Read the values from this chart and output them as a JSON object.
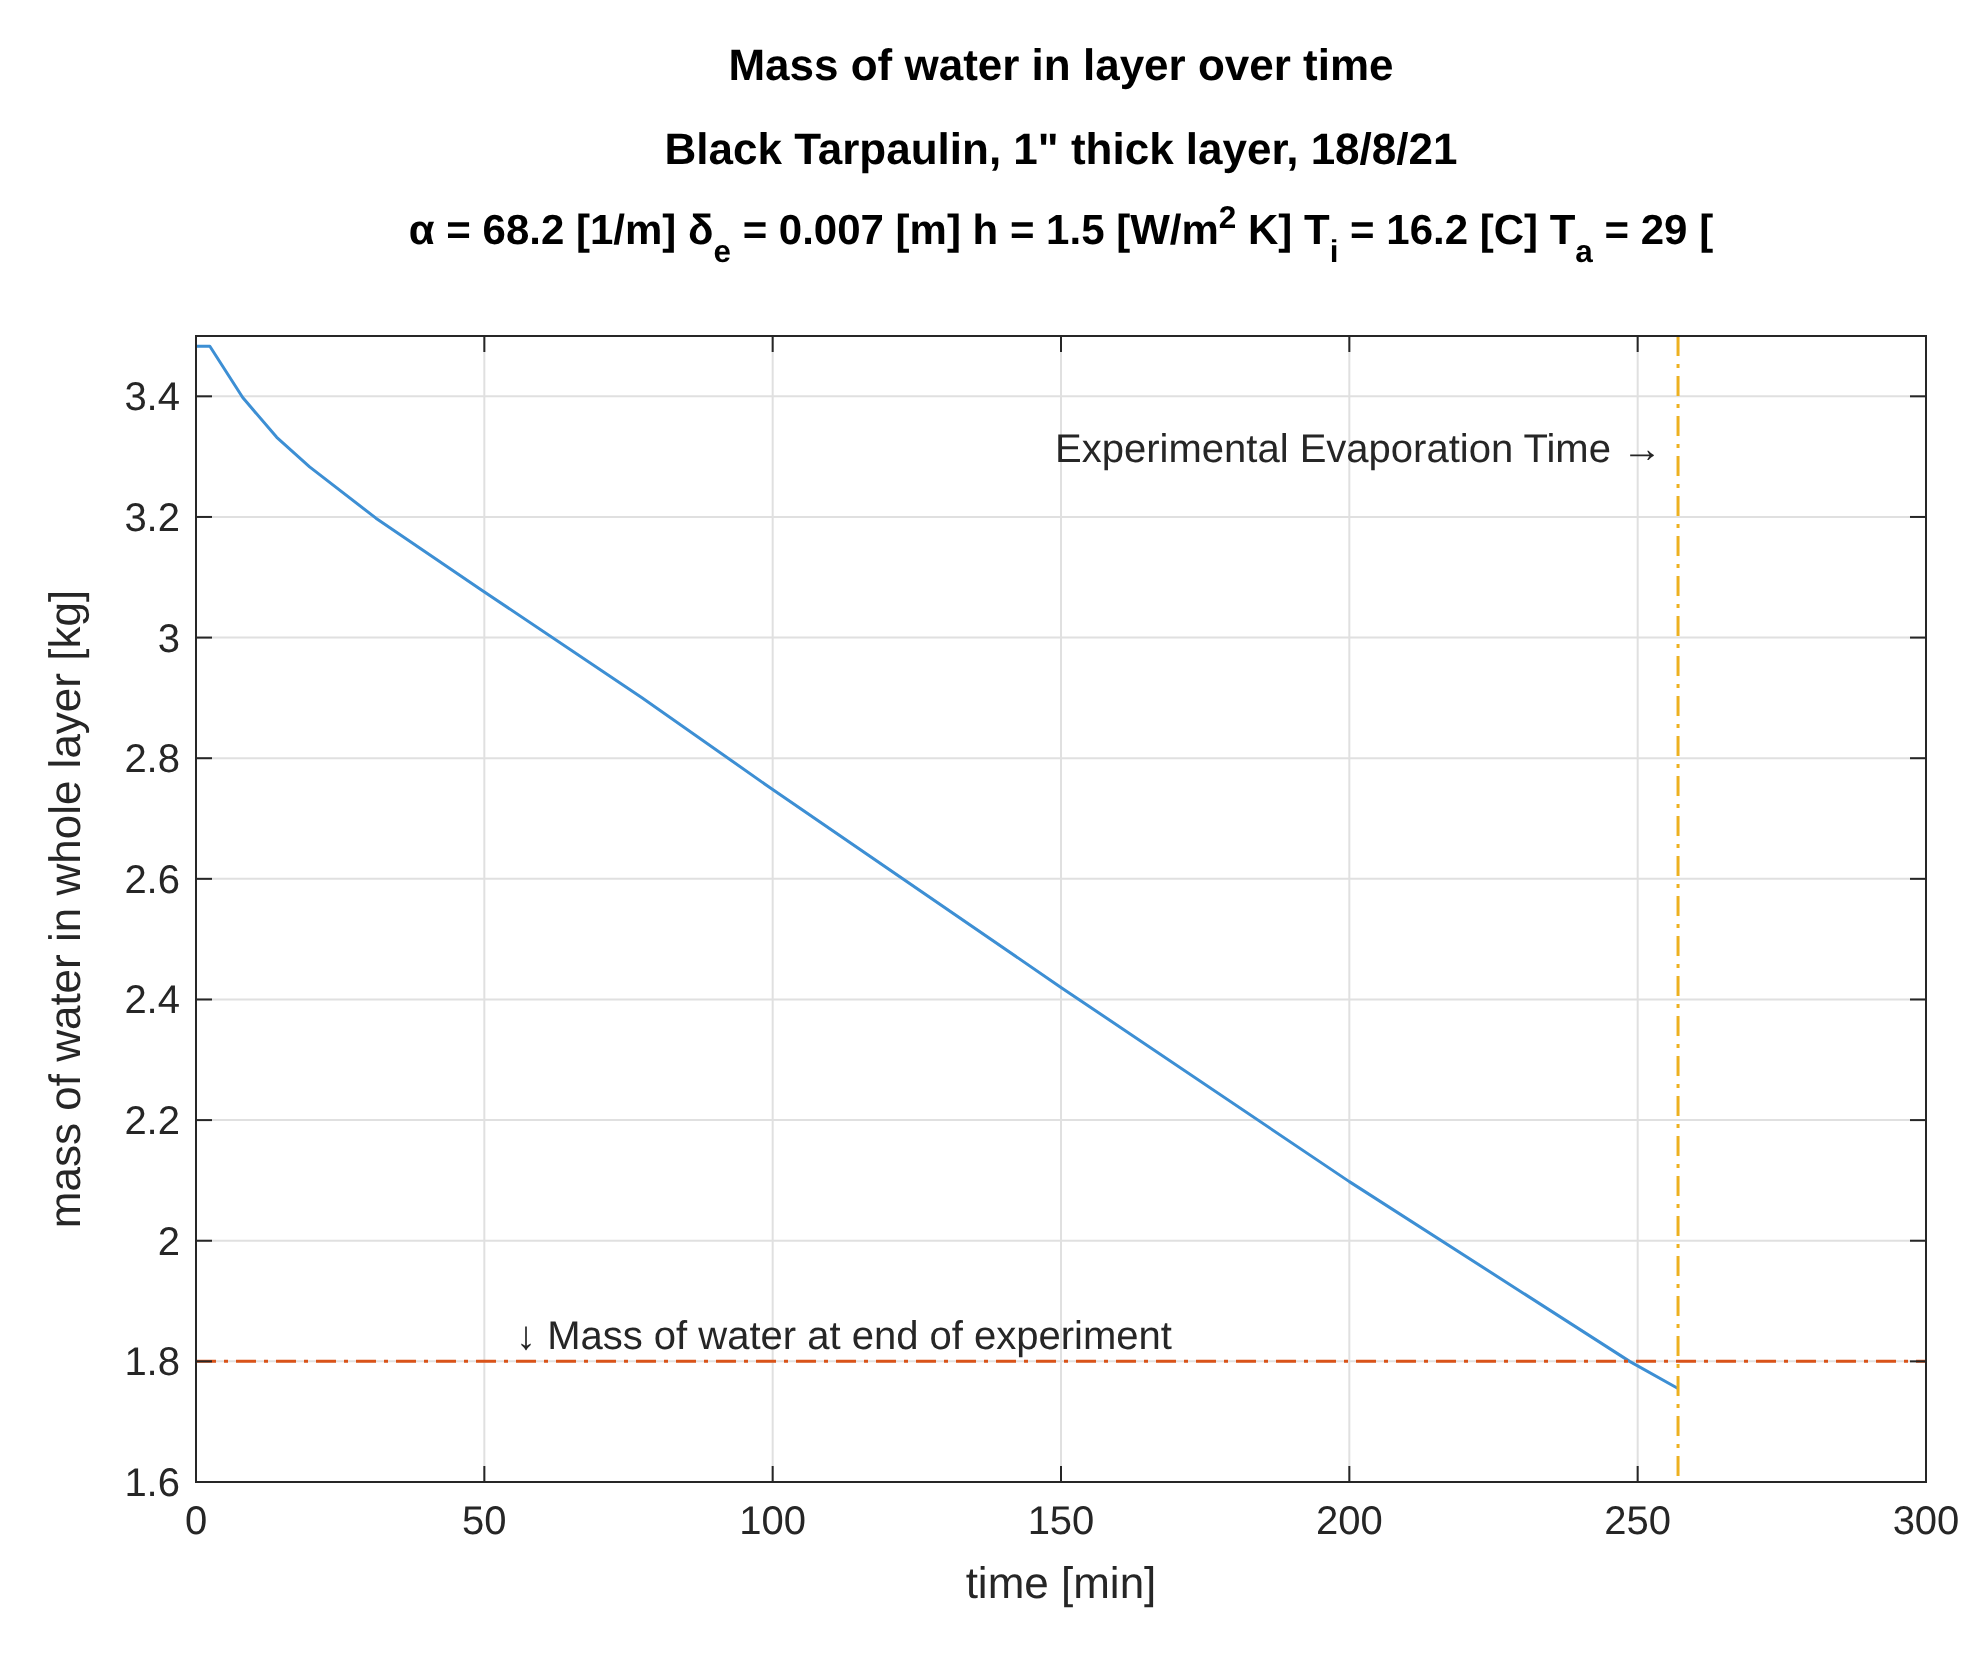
{
  "chart_data": {
    "type": "line",
    "title": "Mass of water in layer over time",
    "subtitle": [
      "Black Tarpaulin, 1\" thick layer, 18/8/21",
      "α = 68.2 [1/m]  δ$_{e}$ = 0.007 [m]  h = 1.5 [W/m$^{2}$ K]  T$_{i}$ = 16.2 [C]  T$_{a}$ = 29 ["
    ],
    "xlabel": "time [min]",
    "ylabel": "mass of water in whole layer [kg]",
    "xlim": [
      0,
      300
    ],
    "xticks": [
      0,
      50,
      100,
      150,
      200,
      250,
      300
    ],
    "ylim": [
      1.6,
      3.5
    ],
    "yticks": [
      1.6,
      1.8,
      2,
      2.2,
      2.4,
      2.6,
      2.8,
      3,
      3.2,
      3.4
    ],
    "grid": true,
    "series": [
      {
        "color": "#3d8fd4",
        "x": [
          0,
          2.4,
          8.1,
          14,
          19.7,
          31.2,
          49.5,
          77.4,
          100,
          150,
          200,
          248.6,
          257
        ],
        "values": [
          3.483,
          3.483,
          3.398,
          3.332,
          3.283,
          3.198,
          3.079,
          2.9,
          2.748,
          2.42,
          2.098,
          1.8,
          1.755
        ]
      }
    ],
    "ref_lines": [
      {
        "axis": "x",
        "value": 257,
        "label": "Experimental Evaporation Time →",
        "color": "#edb120",
        "line_style": "dashed"
      },
      {
        "axis": "y",
        "value": 1.8,
        "label": "↓ Mass of water at end of experiment",
        "color": "#d95319",
        "line_style": "dashed"
      }
    ]
  }
}
